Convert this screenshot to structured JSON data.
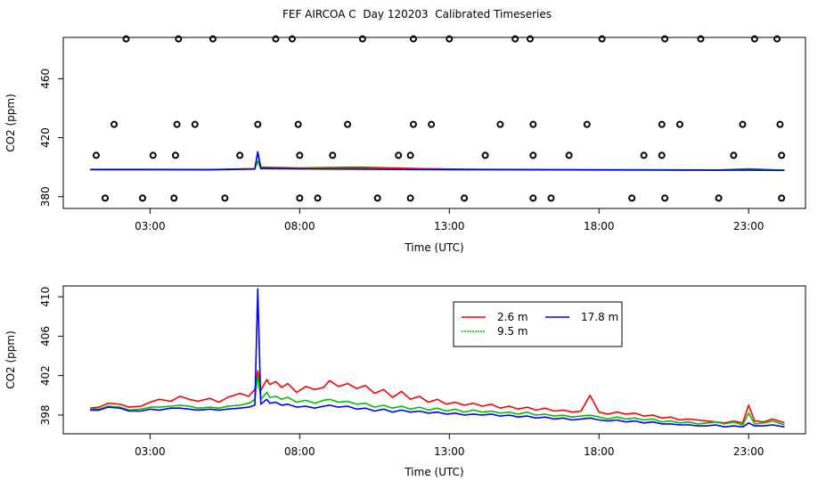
{
  "page": {
    "title": "FEF AIRCOA C  Day 120203  Calibrated Timeseries"
  },
  "chart_data": [
    {
      "type": "scatter+line",
      "title": "",
      "xlabel": "Time (UTC)",
      "ylabel": "CO2 (ppm)",
      "xlim": [
        0.1,
        24.9
      ],
      "ylim": [
        372,
        488
      ],
      "xticks": [
        3,
        8,
        13,
        18,
        23
      ],
      "xtick_labels": [
        "03:00",
        "08:00",
        "13:00",
        "18:00",
        "23:00"
      ],
      "yticks": [
        380,
        420,
        460
      ],
      "ytick_labels": [
        "380",
        "420",
        "460"
      ],
      "points": [
        [
          1.5,
          379
        ],
        [
          2.75,
          379
        ],
        [
          3.8,
          379
        ],
        [
          5.5,
          379
        ],
        [
          8.0,
          379
        ],
        [
          8.6,
          379
        ],
        [
          10.6,
          379
        ],
        [
          11.7,
          379
        ],
        [
          13.5,
          379
        ],
        [
          15.8,
          379
        ],
        [
          16.4,
          379
        ],
        [
          19.1,
          379
        ],
        [
          20.2,
          379
        ],
        [
          22.0,
          379
        ],
        [
          24.1,
          379
        ],
        [
          1.2,
          408
        ],
        [
          3.1,
          408
        ],
        [
          3.85,
          408
        ],
        [
          6.0,
          408
        ],
        [
          8.0,
          408
        ],
        [
          9.1,
          408
        ],
        [
          11.3,
          408
        ],
        [
          11.7,
          408
        ],
        [
          14.2,
          408
        ],
        [
          15.8,
          408
        ],
        [
          17.0,
          408
        ],
        [
          19.5,
          408
        ],
        [
          20.1,
          408
        ],
        [
          22.5,
          408
        ],
        [
          24.1,
          408
        ],
        [
          1.8,
          429
        ],
        [
          3.9,
          429
        ],
        [
          4.5,
          429
        ],
        [
          6.6,
          429
        ],
        [
          7.95,
          429
        ],
        [
          9.6,
          429
        ],
        [
          11.8,
          429
        ],
        [
          12.4,
          429
        ],
        [
          14.7,
          429
        ],
        [
          15.8,
          429
        ],
        [
          17.6,
          429
        ],
        [
          20.1,
          429
        ],
        [
          20.7,
          429
        ],
        [
          22.8,
          429
        ],
        [
          24.05,
          429
        ],
        [
          2.2,
          491
        ],
        [
          3.95,
          491
        ],
        [
          5.1,
          491
        ],
        [
          7.2,
          491
        ],
        [
          7.75,
          491
        ],
        [
          10.1,
          491
        ],
        [
          11.8,
          491
        ],
        [
          13.0,
          491
        ],
        [
          15.2,
          491
        ],
        [
          15.7,
          491
        ],
        [
          18.1,
          491
        ],
        [
          20.2,
          491
        ],
        [
          21.4,
          491
        ],
        [
          23.2,
          491
        ],
        [
          23.95,
          491
        ]
      ],
      "series": [
        {
          "name": "2.6 m",
          "color": "#ff0000",
          "x": [
            1.0,
            3.0,
            5.0,
            6.5,
            6.6,
            6.7,
            8.0,
            10.0,
            12.0,
            14.0,
            16.0,
            18.0,
            20.0,
            22.0,
            23.0,
            24.2
          ],
          "y": [
            398.5,
            398.5,
            398.4,
            399,
            410,
            400,
            399.5,
            400,
            399,
            398.5,
            398.4,
            398.3,
            398.2,
            398.1,
            398.8,
            398.0
          ]
        },
        {
          "name": "9.5 m",
          "color": "#00c000",
          "x": [
            1.0,
            3.0,
            5.0,
            6.5,
            6.6,
            6.7,
            8.0,
            10.0,
            12.0,
            14.0,
            16.0,
            18.0,
            20.0,
            22.0,
            23.0,
            24.2
          ],
          "y": [
            398.4,
            398.4,
            398.3,
            398.8,
            404,
            399.2,
            399,
            399,
            398.6,
            398.4,
            398.3,
            398.2,
            398.1,
            398.0,
            398.3,
            397.9
          ]
        },
        {
          "name": "17.8 m",
          "color": "#0000ff",
          "x": [
            1.0,
            3.0,
            5.0,
            6.5,
            6.6,
            6.7,
            8.0,
            10.0,
            12.0,
            14.0,
            16.0,
            18.0,
            20.0,
            22.0,
            23.0,
            24.2
          ],
          "y": [
            398.3,
            398.3,
            398.2,
            398.7,
            410.5,
            399,
            398.8,
            398.6,
            398.4,
            398.3,
            398.2,
            398.1,
            398.0,
            397.9,
            397.9,
            397.8
          ]
        }
      ]
    },
    {
      "type": "line",
      "title": "",
      "xlabel": "Time (UTC)",
      "ylabel": "CO2 (ppm)",
      "xlim": [
        0.1,
        24.9
      ],
      "ylim": [
        396.1,
        411.1
      ],
      "xticks": [
        3,
        8,
        13,
        18,
        23
      ],
      "xtick_labels": [
        "03:00",
        "08:00",
        "13:00",
        "18:00",
        "23:00"
      ],
      "yticks": [
        398,
        402,
        406,
        410
      ],
      "ytick_labels": [
        "398",
        "402",
        "406",
        "410"
      ],
      "legend": {
        "position": "top-center",
        "entries": [
          {
            "name": "2.6 m",
            "color": "#ff0000",
            "dash": "solid"
          },
          {
            "name": "9.5 m",
            "color": "#00c000",
            "dash": "dotted"
          },
          {
            "name": "17.8 m",
            "color": "#0000ff",
            "dash": "solid"
          }
        ]
      },
      "series": [
        {
          "name": "2.6 m",
          "color": "#ff0000",
          "x": [
            1.0,
            1.3,
            1.6,
            2.0,
            2.3,
            2.7,
            3.0,
            3.3,
            3.7,
            4.0,
            4.3,
            4.6,
            5.0,
            5.3,
            5.6,
            6.0,
            6.3,
            6.5,
            6.6,
            6.7,
            6.9,
            7.0,
            7.2,
            7.4,
            7.6,
            7.9,
            8.2,
            8.5,
            8.8,
            9.0,
            9.3,
            9.6,
            9.9,
            10.2,
            10.5,
            10.8,
            11.1,
            11.4,
            11.7,
            12.0,
            12.3,
            12.6,
            12.9,
            13.2,
            13.5,
            13.8,
            14.1,
            14.4,
            14.7,
            15.0,
            15.3,
            15.6,
            15.9,
            16.2,
            16.5,
            16.8,
            17.1,
            17.4,
            17.7,
            18.0,
            18.3,
            18.6,
            18.9,
            19.2,
            19.5,
            19.8,
            20.1,
            20.4,
            20.7,
            21.0,
            21.3,
            21.6,
            21.9,
            22.2,
            22.5,
            22.8,
            23.0,
            23.2,
            23.5,
            23.8,
            24.2
          ],
          "y": [
            398.7,
            398.8,
            399.2,
            399.1,
            398.8,
            398.9,
            399.3,
            399.6,
            399.4,
            399.9,
            399.6,
            399.4,
            399.7,
            399.3,
            399.8,
            400.2,
            399.9,
            400.6,
            402.5,
            400.5,
            401.6,
            401.1,
            401.4,
            400.8,
            401.2,
            400.3,
            400.9,
            400.6,
            400.8,
            401.5,
            400.9,
            401.2,
            400.7,
            401.0,
            400.2,
            400.6,
            399.8,
            400.4,
            399.6,
            399.9,
            399.3,
            399.6,
            399.1,
            399.3,
            399.0,
            399.2,
            398.9,
            399.1,
            398.7,
            398.9,
            398.6,
            398.8,
            398.5,
            398.7,
            398.4,
            398.5,
            398.3,
            398.4,
            400.0,
            398.3,
            398.1,
            398.3,
            398.1,
            398.2,
            397.9,
            398.0,
            397.7,
            397.8,
            397.5,
            397.6,
            397.5,
            397.4,
            397.3,
            397.2,
            397.4,
            397.2,
            399.0,
            397.4,
            397.3,
            397.6,
            397.2
          ]
        },
        {
          "name": "9.5 m",
          "color": "#00c000",
          "x": [
            1.0,
            1.3,
            1.6,
            2.0,
            2.3,
            2.7,
            3.0,
            3.3,
            3.7,
            4.0,
            4.3,
            4.6,
            5.0,
            5.3,
            5.6,
            6.0,
            6.3,
            6.5,
            6.6,
            6.7,
            6.9,
            7.0,
            7.2,
            7.4,
            7.6,
            7.9,
            8.2,
            8.5,
            8.8,
            9.0,
            9.3,
            9.6,
            9.9,
            10.2,
            10.5,
            10.8,
            11.1,
            11.4,
            11.7,
            12.0,
            12.3,
            12.6,
            12.9,
            13.2,
            13.5,
            13.8,
            14.1,
            14.4,
            14.7,
            15.0,
            15.3,
            15.6,
            15.9,
            16.2,
            16.5,
            16.8,
            17.1,
            17.4,
            17.7,
            18.0,
            18.3,
            18.6,
            18.9,
            19.2,
            19.5,
            19.8,
            20.1,
            20.4,
            20.7,
            21.0,
            21.3,
            21.6,
            21.9,
            22.2,
            22.5,
            22.8,
            23.0,
            23.2,
            23.5,
            23.8,
            24.2
          ],
          "y": [
            398.6,
            398.6,
            398.9,
            398.8,
            398.5,
            398.6,
            398.8,
            398.8,
            398.9,
            399.0,
            398.9,
            398.7,
            398.8,
            398.7,
            398.9,
            399.0,
            399.2,
            399.6,
            402.0,
            399.6,
            400.3,
            399.8,
            399.9,
            399.6,
            399.8,
            399.3,
            399.5,
            399.2,
            399.5,
            399.6,
            399.3,
            399.4,
            399.1,
            399.2,
            398.8,
            399.0,
            398.7,
            398.9,
            398.6,
            398.8,
            398.5,
            398.7,
            398.4,
            398.6,
            398.3,
            398.5,
            398.3,
            398.4,
            398.2,
            398.3,
            398.1,
            398.3,
            398.0,
            398.1,
            397.9,
            398.0,
            397.8,
            397.9,
            398.0,
            397.8,
            397.6,
            397.8,
            397.6,
            397.7,
            397.5,
            397.6,
            397.3,
            397.4,
            397.2,
            397.3,
            397.1,
            397.2,
            397.3,
            397.1,
            397.3,
            397.0,
            398.2,
            397.1,
            397.2,
            397.4,
            397.0
          ]
        },
        {
          "name": "17.8 m",
          "color": "#0000ff",
          "x": [
            1.0,
            1.3,
            1.6,
            2.0,
            2.3,
            2.7,
            3.0,
            3.3,
            3.7,
            4.0,
            4.3,
            4.6,
            5.0,
            5.3,
            5.6,
            6.0,
            6.3,
            6.5,
            6.6,
            6.7,
            6.9,
            7.0,
            7.2,
            7.4,
            7.6,
            7.9,
            8.2,
            8.5,
            8.8,
            9.0,
            9.3,
            9.6,
            9.9,
            10.2,
            10.5,
            10.8,
            11.1,
            11.4,
            11.7,
            12.0,
            12.3,
            12.6,
            12.9,
            13.2,
            13.5,
            13.8,
            14.1,
            14.4,
            14.7,
            15.0,
            15.3,
            15.6,
            15.9,
            16.2,
            16.5,
            16.8,
            17.1,
            17.4,
            17.7,
            18.0,
            18.3,
            18.6,
            18.9,
            19.2,
            19.5,
            19.8,
            20.1,
            20.4,
            20.7,
            21.0,
            21.3,
            21.6,
            21.9,
            22.2,
            22.5,
            22.8,
            23.0,
            23.2,
            23.5,
            23.8,
            24.2
          ],
          "y": [
            398.5,
            398.5,
            398.8,
            398.7,
            398.4,
            398.4,
            398.6,
            398.5,
            398.7,
            398.7,
            398.6,
            398.5,
            398.6,
            398.5,
            398.6,
            398.7,
            398.8,
            399.0,
            410.8,
            399.1,
            399.6,
            399.2,
            399.3,
            399.0,
            399.1,
            398.8,
            398.9,
            398.7,
            398.9,
            399.0,
            398.8,
            398.9,
            398.6,
            398.7,
            398.4,
            398.6,
            398.3,
            398.5,
            398.3,
            398.4,
            398.2,
            398.3,
            398.1,
            398.2,
            398.0,
            398.1,
            398.0,
            398.1,
            397.9,
            398.0,
            397.8,
            397.9,
            397.7,
            397.8,
            397.6,
            397.7,
            397.5,
            397.6,
            397.7,
            397.5,
            397.4,
            397.5,
            397.3,
            397.4,
            397.2,
            397.3,
            397.1,
            397.1,
            397.0,
            397.0,
            396.9,
            396.9,
            397.0,
            396.8,
            396.9,
            396.8,
            397.2,
            396.9,
            396.9,
            397.0,
            396.8
          ]
        }
      ]
    }
  ]
}
